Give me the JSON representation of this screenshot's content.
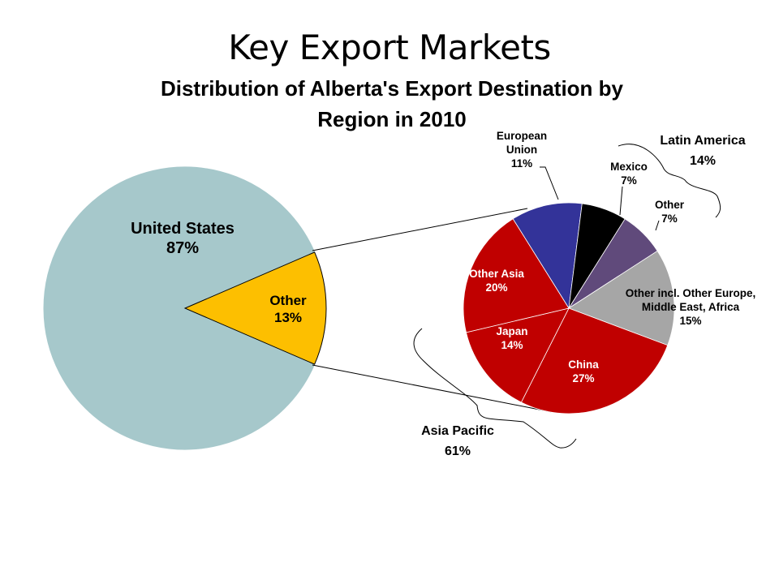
{
  "slide": {
    "title": "Key Export Markets"
  },
  "chart_data": {
    "type": "pie",
    "title_lines": [
      "Distribution of Alberta's Export Destination by",
      "Region in 2010"
    ],
    "main_pie": {
      "slices": [
        {
          "label": "United States",
          "pct_text": "87%",
          "value": 87,
          "color": "#a6c8cb"
        },
        {
          "label": "Other",
          "pct_text": "13%",
          "value": 13,
          "color": "#fdbf00"
        }
      ]
    },
    "breakdown_pie": {
      "slices": [
        {
          "label_lines": [
            "European",
            "Union"
          ],
          "pct_text": "11%",
          "value": 11,
          "color": "#333399",
          "label_color": "#000000"
        },
        {
          "label_lines": [
            "Mexico"
          ],
          "pct_text": "7%",
          "value": 7,
          "color": "#000000",
          "label_color": "#000000"
        },
        {
          "label_lines": [
            "Other"
          ],
          "pct_text": "7%",
          "value": 7,
          "color": "#604a7b",
          "label_color": "#000000"
        },
        {
          "label_lines": [
            "Other incl. Other Europe,",
            "Middle East, Africa"
          ],
          "pct_text": "15%",
          "value": 15,
          "color": "#a6a6a6",
          "label_color": "#000000"
        },
        {
          "label_lines": [
            "China"
          ],
          "pct_text": "27%",
          "value": 27,
          "color": "#c00000",
          "label_color": "#ffffff"
        },
        {
          "label_lines": [
            "Japan"
          ],
          "pct_text": "14%",
          "value": 14,
          "color": "#c00000",
          "label_color": "#ffffff"
        },
        {
          "label_lines": [
            "Other Asia"
          ],
          "pct_text": "20%",
          "value": 20,
          "color": "#c00000",
          "label_color": "#ffffff"
        }
      ]
    },
    "groups": [
      {
        "label": "Latin America",
        "pct_text": "14%",
        "members": [
          "Mexico",
          "Other"
        ]
      },
      {
        "label": "Asia Pacific",
        "pct_text": "61%",
        "members": [
          "China",
          "Japan",
          "Other Asia"
        ]
      }
    ]
  }
}
